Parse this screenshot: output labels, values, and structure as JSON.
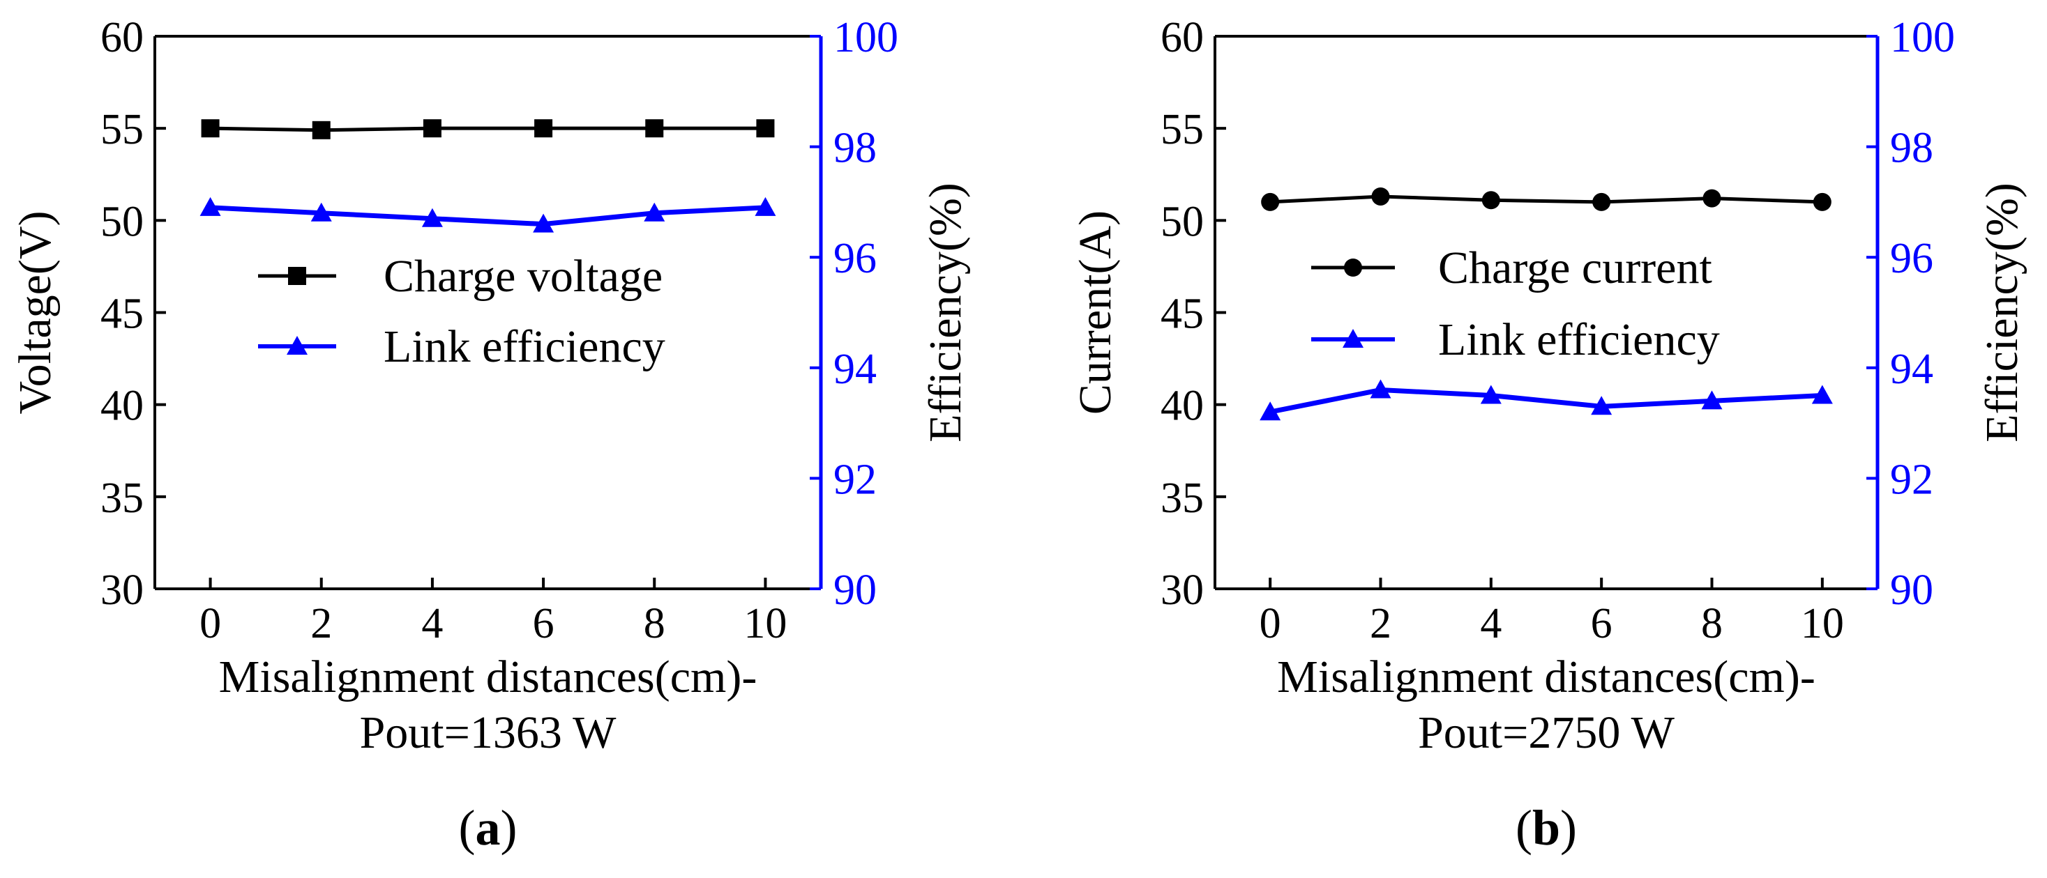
{
  "colors": {
    "left_axis": "#000000",
    "right_axis": "#0000ff",
    "series_primary": "#000000",
    "series_efficiency": "#0000ff"
  },
  "chart_data": [
    {
      "type": "line",
      "panel_label": "a",
      "x": [
        0,
        2,
        4,
        6,
        8,
        10
      ],
      "xlim": [
        -1,
        11
      ],
      "xlabel": "Misalignment distances(cm)-",
      "xlabel2": "Pout=1363 W",
      "x_ticks": [
        "0",
        "2",
        "4",
        "6",
        "8",
        "10"
      ],
      "ylabel": "Voltage(V)",
      "ylim": [
        30,
        60
      ],
      "y_ticks": [
        "30",
        "35",
        "40",
        "45",
        "50",
        "55",
        "60"
      ],
      "y2label": "Efficiency(%)",
      "y2lim": [
        90,
        100
      ],
      "y2_ticks": [
        "90",
        "92",
        "94",
        "96",
        "98",
        "100"
      ],
      "legend_placement": "center",
      "series": [
        {
          "name": "Charge voltage",
          "axis": "left",
          "marker": "square",
          "values": [
            55.0,
            54.9,
            55.0,
            55.0,
            55.0,
            55.0
          ]
        },
        {
          "name": "Link efficiency",
          "axis": "right",
          "marker": "triangle",
          "values": [
            96.9,
            96.8,
            96.7,
            96.6,
            96.8,
            96.9
          ]
        }
      ]
    },
    {
      "type": "line",
      "panel_label": "b",
      "x": [
        0,
        2,
        4,
        6,
        8,
        10
      ],
      "xlim": [
        -1,
        11
      ],
      "xlabel": "Misalignment distances(cm)-",
      "xlabel2": "Pout=2750 W",
      "x_ticks": [
        "0",
        "2",
        "4",
        "6",
        "8",
        "10"
      ],
      "ylabel": "Current(A)",
      "ylim": [
        30,
        60
      ],
      "y_ticks": [
        "30",
        "35",
        "40",
        "45",
        "50",
        "55",
        "60"
      ],
      "y2label": "Efficiency(%)",
      "y2lim": [
        90,
        100
      ],
      "y2_ticks": [
        "90",
        "92",
        "94",
        "96",
        "98",
        "100"
      ],
      "legend_placement": "center",
      "series": [
        {
          "name": "Charge current",
          "axis": "left",
          "marker": "circle",
          "values": [
            51.0,
            51.3,
            51.1,
            51.0,
            51.2,
            51.0
          ]
        },
        {
          "name": "Link efficiency",
          "axis": "right",
          "marker": "triangle",
          "values": [
            93.2,
            93.6,
            93.5,
            93.3,
            93.4,
            93.5
          ]
        }
      ]
    }
  ]
}
